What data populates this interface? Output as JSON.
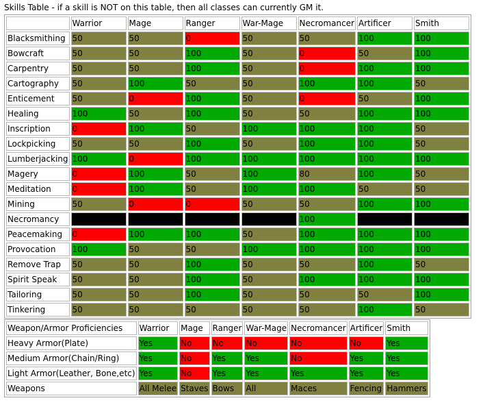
{
  "caption": "Skills Table - if a skill is NOT on this table, then all classes can currently GM it.",
  "colors": {
    "olive": "#808040",
    "green": "#00aa00",
    "red": "#ff0000",
    "black": "#000000"
  },
  "skills": {
    "classes": [
      "Warrior",
      "Mage",
      "Ranger",
      "War-Mage",
      "Necromancer",
      "Artificer",
      "Smith"
    ],
    "rows": [
      {
        "skill": "Blacksmithing",
        "values": [
          "50",
          "50",
          "0",
          "50",
          "50",
          "100",
          "100"
        ]
      },
      {
        "skill": "Bowcraft",
        "values": [
          "50",
          "50",
          "100",
          "50",
          "0",
          "50",
          "100"
        ]
      },
      {
        "skill": "Carpentry",
        "values": [
          "50",
          "50",
          "100",
          "50",
          "0",
          "100",
          "100"
        ]
      },
      {
        "skill": "Cartography",
        "values": [
          "50",
          "100",
          "50",
          "50",
          "100",
          "100",
          "50"
        ]
      },
      {
        "skill": "Enticement",
        "values": [
          "50",
          "0",
          "100",
          "50",
          "0",
          "50",
          "100"
        ]
      },
      {
        "skill": "Healing",
        "values": [
          "100",
          "50",
          "100",
          "50",
          "50",
          "100",
          "100"
        ]
      },
      {
        "skill": "Inscription",
        "values": [
          "0",
          "100",
          "50",
          "100",
          "100",
          "100",
          "50"
        ]
      },
      {
        "skill": "Lockpicking",
        "values": [
          "50",
          "50",
          "100",
          "50",
          "100",
          "100",
          "50"
        ]
      },
      {
        "skill": "Lumberjacking",
        "values": [
          "100",
          "0",
          "100",
          "100",
          "100",
          "100",
          "100"
        ]
      },
      {
        "skill": "Magery",
        "values": [
          "0",
          "100",
          "50",
          "100",
          "80",
          "100",
          "50"
        ]
      },
      {
        "skill": "Meditation",
        "values": [
          "0",
          "100",
          "50",
          "100",
          "100",
          "50",
          "50"
        ]
      },
      {
        "skill": "Mining",
        "values": [
          "50",
          "0",
          "0",
          "50",
          "50",
          "100",
          "100"
        ]
      },
      {
        "skill": "Necromancy",
        "values": [
          "",
          "",
          "",
          "",
          "100",
          "",
          ""
        ]
      },
      {
        "skill": "Peacemaking",
        "values": [
          "0",
          "100",
          "100",
          "50",
          "100",
          "100",
          "100"
        ]
      },
      {
        "skill": "Provocation",
        "values": [
          "100",
          "50",
          "50",
          "100",
          "100",
          "100",
          "100"
        ]
      },
      {
        "skill": "Remove Trap",
        "values": [
          "50",
          "50",
          "100",
          "50",
          "50",
          "100",
          "50"
        ]
      },
      {
        "skill": "Spirit Speak",
        "values": [
          "50",
          "50",
          "100",
          "50",
          "100",
          "100",
          "100"
        ]
      },
      {
        "skill": "Tailoring",
        "values": [
          "50",
          "50",
          "100",
          "50",
          "50",
          "50",
          "100"
        ]
      },
      {
        "skill": "Tinkering",
        "values": [
          "50",
          "50",
          "50",
          "50",
          "50",
          "100",
          "50"
        ]
      }
    ],
    "cell_colors": [
      [
        "olive",
        "olive",
        "red",
        "olive",
        "olive",
        "green",
        "green"
      ],
      [
        "olive",
        "olive",
        "green",
        "olive",
        "red",
        "olive",
        "green"
      ],
      [
        "olive",
        "olive",
        "green",
        "olive",
        "red",
        "green",
        "green"
      ],
      [
        "olive",
        "green",
        "olive",
        "olive",
        "green",
        "green",
        "olive"
      ],
      [
        "olive",
        "red",
        "green",
        "olive",
        "red",
        "olive",
        "green"
      ],
      [
        "green",
        "olive",
        "green",
        "olive",
        "olive",
        "green",
        "green"
      ],
      [
        "red",
        "green",
        "olive",
        "green",
        "green",
        "green",
        "olive"
      ],
      [
        "olive",
        "olive",
        "green",
        "olive",
        "green",
        "green",
        "olive"
      ],
      [
        "green",
        "red",
        "green",
        "green",
        "green",
        "green",
        "green"
      ],
      [
        "red",
        "green",
        "olive",
        "green",
        "olive",
        "green",
        "olive"
      ],
      [
        "red",
        "green",
        "olive",
        "green",
        "green",
        "olive",
        "olive"
      ],
      [
        "olive",
        "red",
        "red",
        "olive",
        "olive",
        "green",
        "green"
      ],
      [
        "black",
        "black",
        "black",
        "black",
        "green",
        "black",
        "black"
      ],
      [
        "red",
        "green",
        "green",
        "olive",
        "green",
        "green",
        "green"
      ],
      [
        "green",
        "olive",
        "olive",
        "green",
        "green",
        "green",
        "green"
      ],
      [
        "olive",
        "olive",
        "green",
        "olive",
        "olive",
        "green",
        "olive"
      ],
      [
        "olive",
        "olive",
        "green",
        "olive",
        "green",
        "green",
        "green"
      ],
      [
        "olive",
        "olive",
        "green",
        "olive",
        "olive",
        "olive",
        "green"
      ],
      [
        "olive",
        "olive",
        "olive",
        "olive",
        "olive",
        "green",
        "olive"
      ]
    ]
  },
  "proficiencies": {
    "header": "Weapon/Armor Proficiencies",
    "classes": [
      "Warrior",
      "Mage",
      "Ranger",
      "War-Mage",
      "Necromancer",
      "Artificer",
      "Smith"
    ],
    "rows": [
      {
        "label": "Heavy Armor(Plate)",
        "values": [
          "Yes",
          "No",
          "No",
          "No",
          "No",
          "No",
          "Yes"
        ],
        "colors": [
          "green",
          "red",
          "red",
          "red",
          "red",
          "red",
          "green"
        ]
      },
      {
        "label": "Medium Armor(Chain/Ring)",
        "values": [
          "Yes",
          "No",
          "Yes",
          "Yes",
          "No",
          "Yes",
          "Yes"
        ],
        "colors": [
          "green",
          "red",
          "green",
          "green",
          "red",
          "green",
          "green"
        ]
      },
      {
        "label": "Light Armor(Leather, Bone,etc)",
        "values": [
          "Yes",
          "No",
          "Yes",
          "Yes",
          "Yes",
          "Yes",
          "Yes"
        ],
        "colors": [
          "green",
          "red",
          "green",
          "green",
          "green",
          "green",
          "green"
        ]
      },
      {
        "label": "Weapons",
        "values": [
          "All Melee",
          "Staves",
          "Bows",
          "All",
          "Maces",
          "Fencing",
          "Hammers"
        ],
        "colors": [
          "olive",
          "olive",
          "olive",
          "olive",
          "olive",
          "olive",
          "olive"
        ]
      }
    ]
  }
}
